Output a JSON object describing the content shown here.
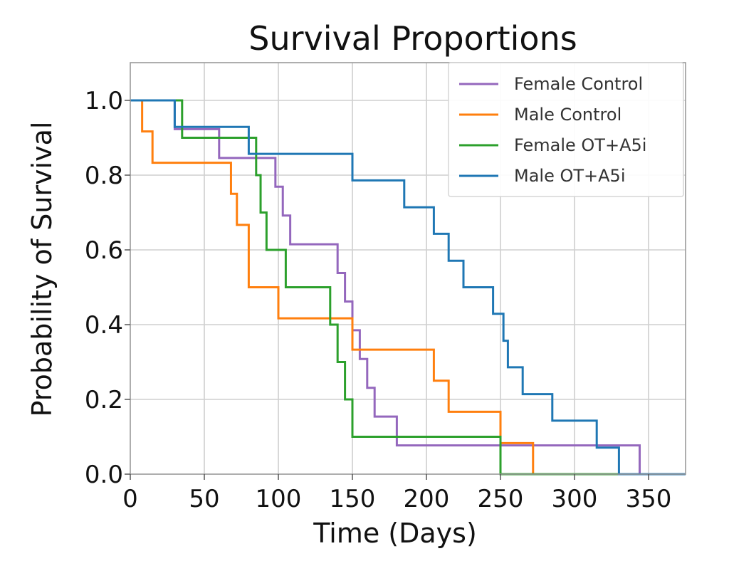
{
  "chart_data": {
    "type": "line",
    "step": true,
    "title": "Survival Proportions",
    "xlabel": "Time (Days)",
    "ylabel": "Probability of Survival",
    "xlim": [
      0,
      375
    ],
    "ylim": [
      0,
      1.1
    ],
    "xticks": [
      0,
      50,
      100,
      150,
      200,
      250,
      300,
      350
    ],
    "yticks": [
      0.0,
      0.2,
      0.4,
      0.6,
      0.8,
      1.0
    ],
    "xtick_labels": [
      "0",
      "50",
      "100",
      "150",
      "200",
      "250",
      "300",
      "350"
    ],
    "ytick_labels": [
      "0.0",
      "0.2",
      "0.4",
      "0.6",
      "0.8",
      "1.0"
    ],
    "grid": true,
    "legend_position": "top-right",
    "series": [
      {
        "name": "Female Control",
        "color": "#9467bd",
        "x": [
          0,
          30,
          60,
          98,
          103,
          108,
          140,
          145,
          150,
          155,
          160,
          165,
          180,
          210,
          344,
          375
        ],
        "y": [
          1.0,
          0.923,
          0.846,
          0.769,
          0.692,
          0.615,
          0.538,
          0.462,
          0.385,
          0.308,
          0.231,
          0.154,
          0.077,
          0.077,
          0.0,
          0.0
        ]
      },
      {
        "name": "Male Control",
        "color": "#ff7f0e",
        "x": [
          0,
          8,
          15,
          68,
          72,
          80,
          88,
          100,
          150,
          205,
          215,
          220,
          250,
          272,
          375
        ],
        "y": [
          1.0,
          0.917,
          0.833,
          0.75,
          0.667,
          0.5,
          0.5,
          0.417,
          0.333,
          0.25,
          0.167,
          0.167,
          0.083,
          0.0,
          0.0
        ]
      },
      {
        "name": "Female OT+A5i",
        "color": "#2ca02c",
        "x": [
          0,
          35,
          50,
          85,
          88,
          92,
          105,
          135,
          140,
          145,
          150,
          250,
          375
        ],
        "y": [
          1.0,
          0.9,
          0.9,
          0.8,
          0.7,
          0.6,
          0.5,
          0.4,
          0.3,
          0.2,
          0.1,
          0.0,
          0.0
        ]
      },
      {
        "name": "Male OT+A5i",
        "color": "#1f77b4",
        "x": [
          0,
          30,
          80,
          150,
          185,
          205,
          215,
          225,
          245,
          252,
          255,
          265,
          285,
          295,
          315,
          330,
          375
        ],
        "y": [
          1.0,
          0.929,
          0.857,
          0.786,
          0.714,
          0.643,
          0.571,
          0.5,
          0.429,
          0.357,
          0.286,
          0.214,
          0.143,
          0.143,
          0.071,
          0.0,
          0.0
        ]
      }
    ]
  }
}
